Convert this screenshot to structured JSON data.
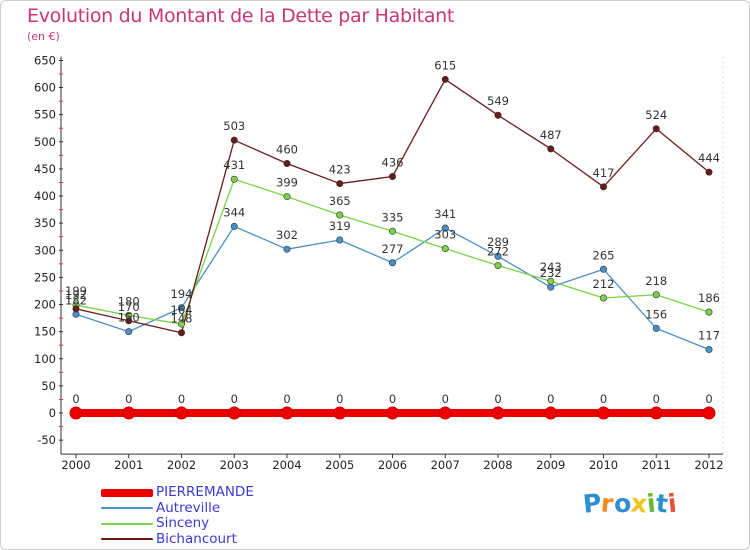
{
  "title": "Evolution du Montant de la Dette par Habitant",
  "subtitle": "(en €)",
  "logo": {
    "text": "Proxiti",
    "letters": [
      "P",
      "r",
      "o",
      "x",
      "i",
      "t",
      "i"
    ],
    "colors": [
      "#2d8fd1",
      "#f28a1e",
      "#2d8fd1",
      "#f2c21e",
      "#6ab82e",
      "#2d8fd1",
      "#e8503a"
    ]
  },
  "chart_data": {
    "type": "line",
    "x": [
      "2000",
      "2001",
      "2002",
      "2003",
      "2004",
      "2005",
      "2006",
      "2007",
      "2008",
      "2009",
      "2010",
      "2011",
      "2012"
    ],
    "ylim": [
      -50,
      650
    ],
    "yticks": [
      -50,
      0,
      50,
      100,
      150,
      200,
      250,
      300,
      350,
      400,
      450,
      500,
      550,
      600,
      650
    ],
    "grid": false,
    "legend_position": "bottom-left",
    "series": [
      {
        "name": "PIERREMANDE",
        "color": "#ee0000",
        "values": [
          0,
          0,
          0,
          0,
          0,
          0,
          0,
          0,
          0,
          0,
          0,
          0,
          0
        ],
        "labels": [
          "0",
          "0",
          "0",
          "0",
          "0",
          "0",
          "0",
          "0",
          "0",
          "0",
          "0",
          "0",
          "0"
        ]
      },
      {
        "name": "Autreville",
        "color": "#4a90c8",
        "values": [
          182,
          150,
          194,
          344,
          302,
          319,
          277,
          341,
          289,
          232,
          265,
          156,
          117
        ],
        "labels": [
          "182",
          "150",
          "194",
          "344",
          "302",
          "319",
          "277",
          "341",
          "289",
          "232",
          "265",
          "156",
          "117"
        ]
      },
      {
        "name": "Sinceny",
        "color": "#7cd24a",
        "values": [
          199,
          180,
          164,
          431,
          399,
          365,
          335,
          303,
          272,
          243,
          212,
          218,
          186
        ],
        "labels": [
          "199",
          "180",
          "164",
          "431",
          "399",
          "365",
          "335",
          "303",
          "272",
          "243",
          "212",
          "218",
          "186"
        ]
      },
      {
        "name": "Bichancourt",
        "color": "#6b1a1a",
        "values": [
          192,
          170,
          148,
          503,
          460,
          423,
          436,
          615,
          549,
          487,
          417,
          524,
          444
        ],
        "labels": [
          "192",
          "170",
          "148",
          "503",
          "460",
          "423",
          "436",
          "615",
          "549",
          "487",
          "417",
          "524",
          "444"
        ]
      }
    ]
  }
}
